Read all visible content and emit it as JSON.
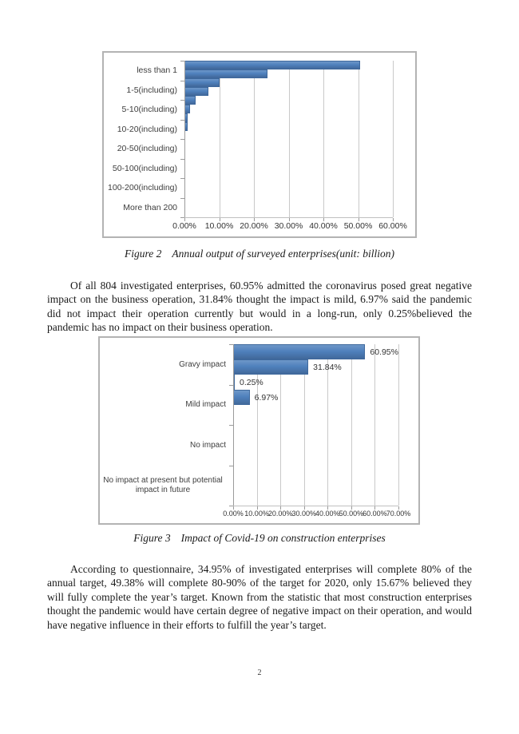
{
  "page": {
    "number": "2"
  },
  "paragraphs": {
    "p1": "Of all 804 investigated enterprises, 60.95% admitted the coronavirus posed great negative impact on the business operation, 31.84% thought the impact is mild, 6.97% said the pandemic did not impact their operation currently but would in a long-run, only 0.25%believed the pandemic has no impact on their business operation.",
    "p2": "According to questionnaire, 34.95% of investigated enterprises will complete 80% of the annual target, 49.38% will complete 80-90% of the target for 2020, only 15.67% believed they will fully complete the year’s target. Known from the statistic that most construction enterprises thought the pandemic would have certain degree of negative impact on their operation, and would have negative influence in their efforts to fulfill the year’s target."
  },
  "chart_data": [
    {
      "type": "bar",
      "orientation": "horizontal",
      "figure_label": "Figure 2",
      "title": "Annual output of surveyed enterprises(unit: billion)",
      "categories": [
        "less than 1",
        "1-5(including)",
        "5-10(including)",
        "10-20(including)",
        "20-50(including)",
        "50-100(including)",
        "100-200(including)",
        "More than 200"
      ],
      "values": [
        50.5,
        24.0,
        10.2,
        7.0,
        3.2,
        1.6,
        0.9,
        1.0
      ],
      "values_note": "estimated from gridlines, percent",
      "x_ticks": [
        "0.00%",
        "10.00%",
        "20.00%",
        "30.00%",
        "40.00%",
        "50.00%",
        "60.00%"
      ],
      "xlim": [
        0,
        60
      ],
      "data_labels": false,
      "grid": true,
      "legend": "none",
      "bar_color": "#4f81bd"
    },
    {
      "type": "bar",
      "orientation": "horizontal",
      "figure_label": "Figure 3",
      "title": "Impact of Covid-19 on construction enterprises",
      "categories": [
        "Gravy impact",
        "Mild impact",
        "No impact",
        "No impact at present but potential impact in future"
      ],
      "values": [
        60.95,
        31.84,
        0.25,
        6.97
      ],
      "data_label_texts": [
        "60.95%",
        "31.84%",
        "0.25%",
        "6.97%"
      ],
      "x_ticks": [
        "0.00%",
        "10.00%",
        "20.00%",
        "30.00%",
        "40.00%",
        "50.00%",
        "60.00%",
        "70.00%"
      ],
      "xlim": [
        0,
        70
      ],
      "data_labels": true,
      "grid": true,
      "legend": "none",
      "bar_color": "#4f81bd"
    }
  ]
}
